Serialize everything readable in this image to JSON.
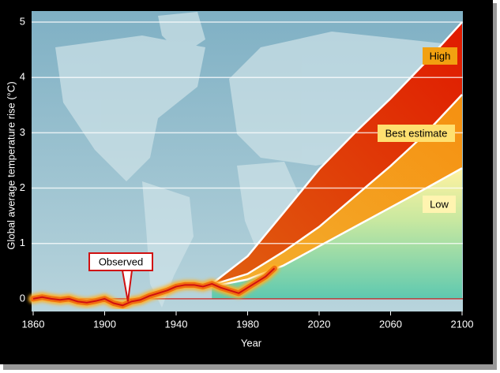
{
  "chart_data": {
    "type": "line",
    "x_label": "Year",
    "y_label": "Global average temperature rise (°C)",
    "xlim": [
      1860,
      2100
    ],
    "xticks": [
      1860,
      1900,
      1940,
      1980,
      2020,
      2060,
      2100
    ],
    "ylim": [
      -0.23,
      5.2
    ],
    "yticks": [
      0,
      1,
      2,
      3,
      4,
      5
    ],
    "grid": true,
    "series": [
      {
        "name": "High",
        "color": "#f0a020",
        "x": [
          1960,
          1980,
          2000,
          2020,
          2040,
          2060,
          2080,
          2100
        ],
        "values": [
          0.27,
          0.77,
          1.55,
          2.34,
          3.0,
          3.62,
          4.29,
          5.0
        ]
      },
      {
        "name": "Best estimate",
        "color": "#ffe070",
        "x": [
          1960,
          1980,
          2000,
          2020,
          2040,
          2060,
          2080,
          2100
        ],
        "values": [
          0.25,
          0.45,
          0.85,
          1.3,
          1.85,
          2.4,
          3.0,
          3.69
        ]
      },
      {
        "name": "Low",
        "color": "#fff4b0",
        "x": [
          1960,
          1980,
          2000,
          2020,
          2040,
          2060,
          2080,
          2100
        ],
        "values": [
          0.22,
          0.35,
          0.6,
          0.95,
          1.3,
          1.65,
          2.0,
          2.36
        ]
      },
      {
        "name": "Observed",
        "color": "#f07010",
        "x": [
          1860,
          1865,
          1870,
          1875,
          1880,
          1885,
          1890,
          1895,
          1900,
          1905,
          1910,
          1915,
          1920,
          1925,
          1930,
          1935,
          1940,
          1945,
          1950,
          1955,
          1960,
          1965,
          1970,
          1975,
          1980,
          1985,
          1990,
          1995
        ],
        "values": [
          0,
          0.03,
          0.0,
          -0.02,
          0.0,
          -0.05,
          -0.07,
          -0.04,
          0.0,
          -0.08,
          -0.12,
          -0.05,
          -0.02,
          0.05,
          0.1,
          0.15,
          0.22,
          0.25,
          0.25,
          0.22,
          0.27,
          0.2,
          0.15,
          0.1,
          0.2,
          0.3,
          0.4,
          0.55
        ]
      }
    ]
  }
}
